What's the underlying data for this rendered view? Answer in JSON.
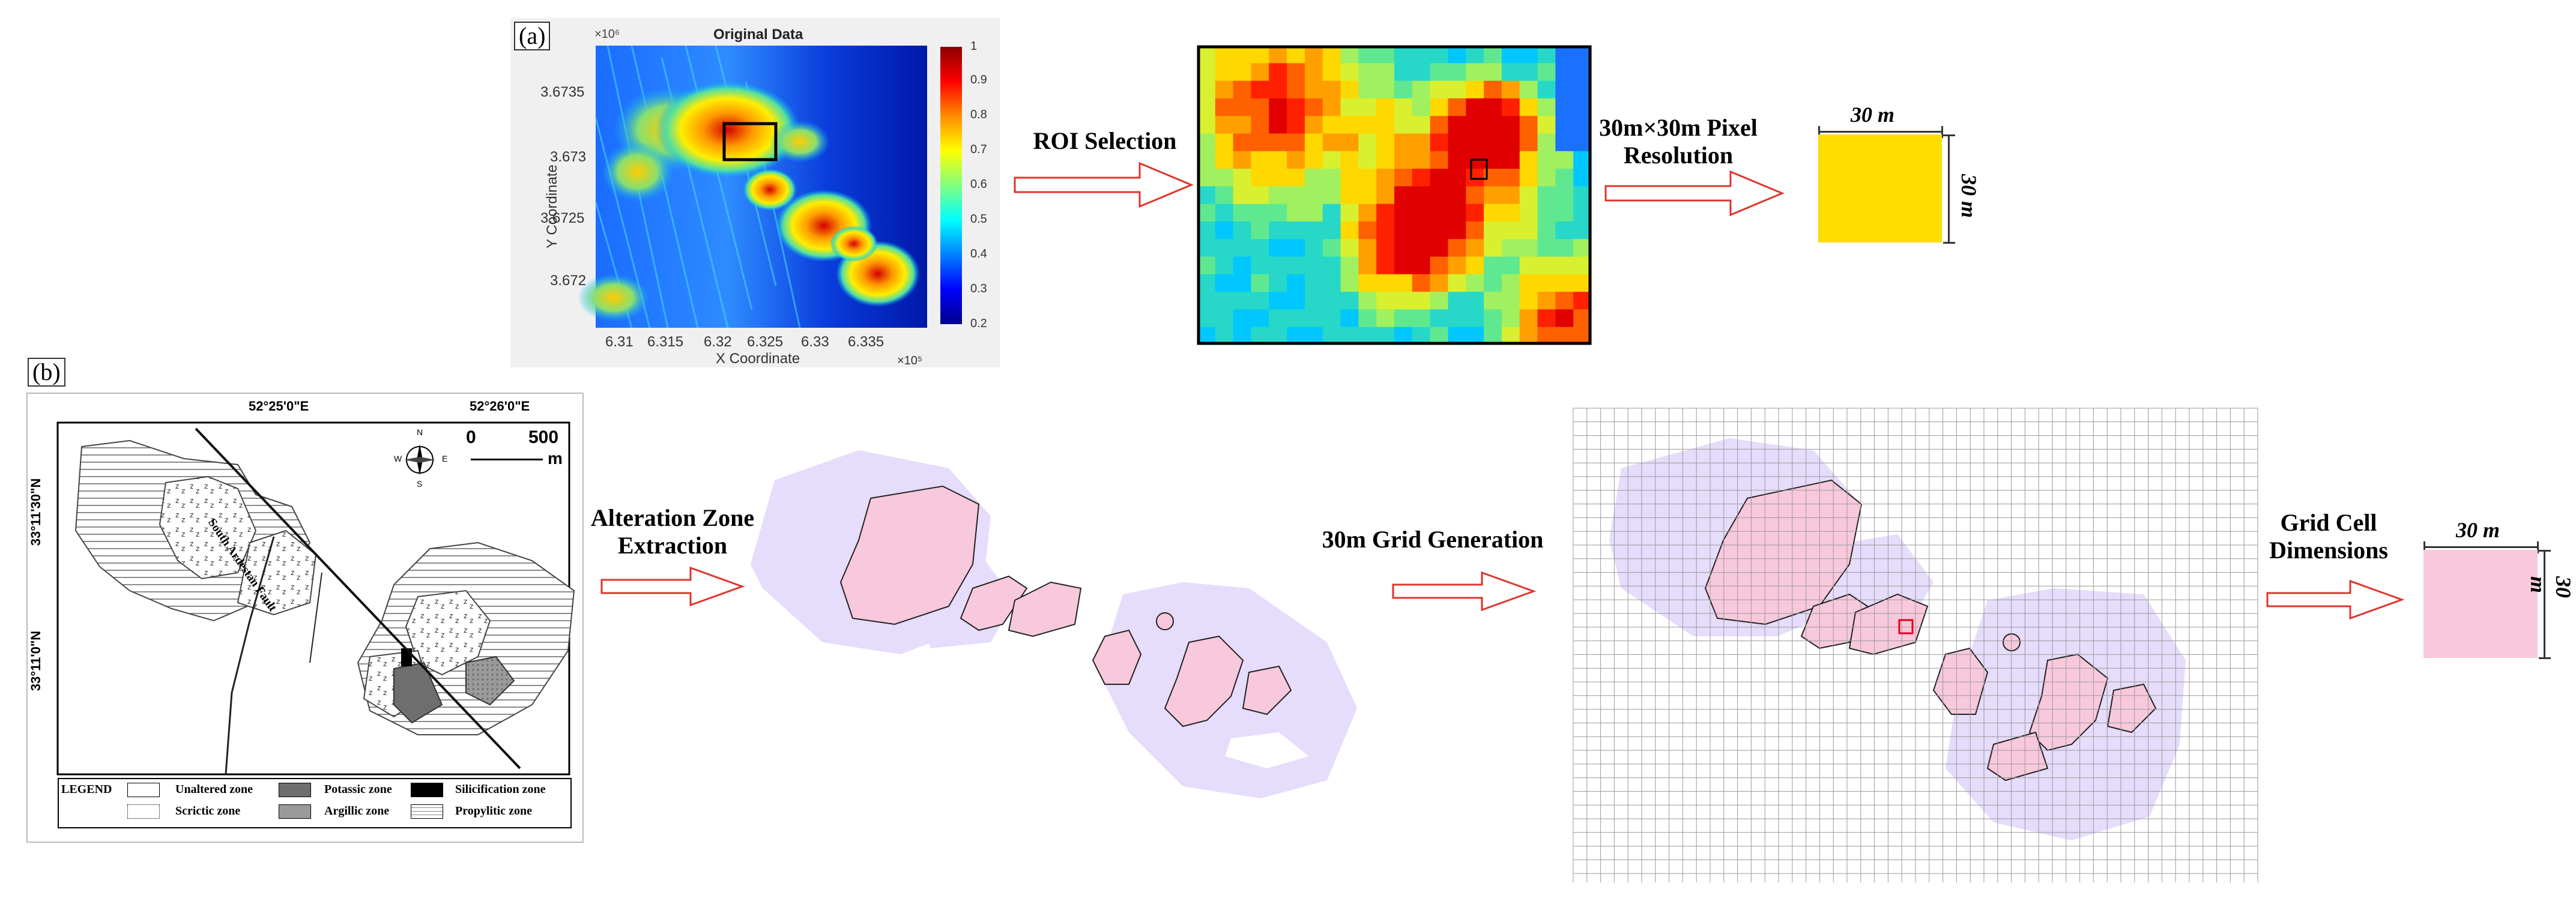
{
  "panel_a": {
    "label": "(a)",
    "map_title": "Original Data",
    "y_exponent": "×10⁶",
    "x_exponent": "×10⁵",
    "xlabel": "X Coordinate",
    "ylabel": "Y Coordinate",
    "yticks": [
      "3.6735",
      "3.673",
      "3.6725",
      "3.672"
    ],
    "xticks": [
      "6.31",
      "6.315",
      "6.32",
      "6.325",
      "6.33",
      "6.335"
    ],
    "colorbar_ticks": [
      "1",
      "0.9",
      "0.8",
      "0.7",
      "0.6",
      "0.5",
      "0.4",
      "0.3",
      "0.2"
    ],
    "step1": "ROI Selection",
    "step2_line1": "30m×30m Pixel",
    "step2_line2": "Resolution",
    "dim_top": "30 m",
    "dim_side": "30 m",
    "cell_color": "#FFDD00"
  },
  "panel_b": {
    "label": "(b)",
    "lon1": "52°25'0\"E",
    "lon2": "52°26'0\"E",
    "lat1": "33°11'30\"N",
    "lat2": "33°11'0\"N",
    "scale_0": "0",
    "scale_500": "500",
    "scale_unit": "m",
    "fault_label": "South Ardestan Fault",
    "compass": {
      "n": "N",
      "s": "S",
      "e": "E",
      "w": "W"
    },
    "legend_title": "LEGEND",
    "legend": [
      {
        "label": "Unaltered zone"
      },
      {
        "label": "Potassic zone"
      },
      {
        "label": "Silicification zone"
      },
      {
        "label": "Scrictic zone"
      },
      {
        "label": "Argillic zone"
      },
      {
        "label": "Propylitic zone"
      }
    ],
    "step1_line1": "Alteration Zone",
    "step1_line2": "Extraction",
    "step2": "30m Grid Generation",
    "step3_line1": "Grid Cell",
    "step3_line2": "Dimensions",
    "dim_top": "30 m",
    "dim_side": "30 m",
    "cell_color": "#F8C8DC",
    "zone_outer_color": "#E6DCFB",
    "zone_inner_color": "#F8C8DC"
  }
}
